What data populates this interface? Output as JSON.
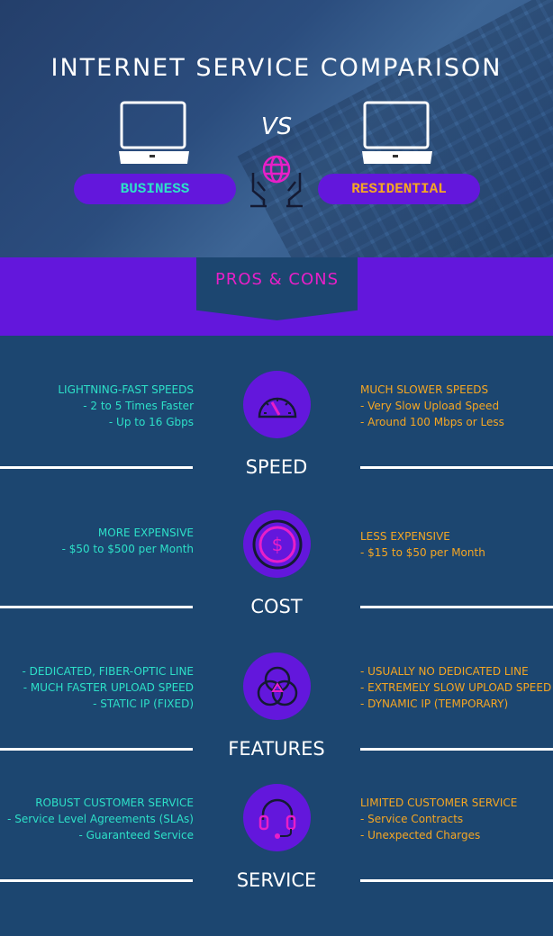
{
  "header": {
    "title": "INTERNET SERVICE COMPARISON",
    "vs": "VS",
    "business": "BUSINESS",
    "residential": "RESIDENTIAL"
  },
  "banner": {
    "title": "PROS & CONS"
  },
  "colors": {
    "background": "#1c4670",
    "purple": "#6317dc",
    "business": "#2de0c8",
    "residential": "#f5a623",
    "accent": "#e81fc8"
  },
  "sections": [
    {
      "label": "SPEED",
      "icon": "speedometer-icon",
      "business": [
        "LIGHTNING-FAST SPEEDS",
        "- 2 to 5 Times Faster",
        "- Up to 16 Gbps"
      ],
      "residential": [
        "MUCH SLOWER SPEEDS",
        "- Very Slow Upload Speed",
        "- Around 100 Mbps or Less"
      ]
    },
    {
      "label": "COST",
      "icon": "dollar-coin-icon",
      "business": [
        "MORE EXPENSIVE",
        "- $50 to $500 per Month"
      ],
      "residential": [
        "LESS EXPENSIVE",
        "- $15 to $50 per Month"
      ]
    },
    {
      "label": "FEATURES",
      "icon": "venn-circles-icon",
      "business": [
        "- DEDICATED, FIBER-OPTIC LINE",
        "- MUCH FASTER UPLOAD SPEED",
        "- STATIC IP (FIXED)"
      ],
      "residential": [
        "- USUALLY NO DEDICATED LINE",
        "- EXTREMELY SLOW UPLOAD SPEED",
        "- DYNAMIC IP (TEMPORARY)"
      ]
    },
    {
      "label": "SERVICE",
      "icon": "headset-icon",
      "business": [
        "ROBUST CUSTOMER SERVICE",
        "- Service Level Agreements (SLAs)",
        "- Guaranteed Service"
      ],
      "residential": [
        "LIMITED CUSTOMER SERVICE",
        "- Service Contracts",
        "- Unexpected Charges"
      ]
    }
  ]
}
